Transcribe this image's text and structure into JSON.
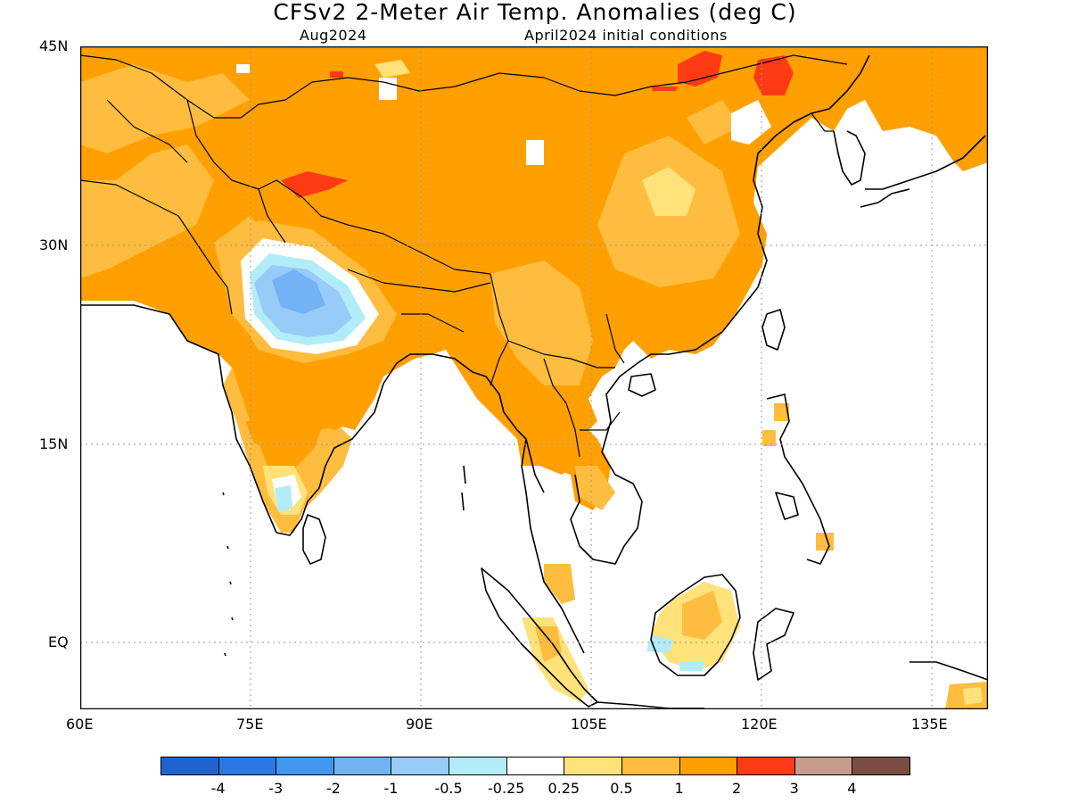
{
  "title": "CFSv2 2-Meter Air Temp. Anomalies (deg C)",
  "subtitle_left": "Aug2024",
  "subtitle_right": "April2024 initial conditions",
  "map": {
    "type": "heatmap",
    "lon_range": [
      60,
      140
    ],
    "lat_range": [
      -6,
      45
    ],
    "grid": "dotted",
    "lat_labels": [
      "45N",
      "30N",
      "15N",
      "EQ"
    ],
    "lon_labels": [
      "60E",
      "75E",
      "90E",
      "105E",
      "120E",
      "135E"
    ]
  },
  "colorbar": {
    "labels": [
      "-4",
      "-3",
      "-2",
      "-1",
      "-0.5",
      "-0.25",
      "0.25",
      "0.5",
      "1",
      "2",
      "3",
      "4"
    ],
    "colors": [
      "#1f63cf",
      "#2b78e4",
      "#4395ef",
      "#73b2f4",
      "#97cbf8",
      "#b2ecf8",
      "#ffffff",
      "#ffe27a",
      "#ffbd3f",
      "#ffa000",
      "#ff3b14",
      "#c89c8c",
      "#7b4d41"
    ]
  },
  "chart_data": {
    "type": "heatmap",
    "title": "CFSv2 2-Meter Air Temp. Anomalies (deg C)",
    "subtitle": "Aug2024 — April2024 initial conditions",
    "x_axis": {
      "label": "",
      "range": [
        60,
        140
      ],
      "ticks": [
        "60E",
        "75E",
        "90E",
        "105E",
        "120E",
        "135E"
      ]
    },
    "y_axis": {
      "label": "",
      "range": [
        -6,
        45
      ],
      "ticks": [
        "45N",
        "30N",
        "15N",
        "EQ"
      ]
    },
    "legend_bins": [
      "<-4",
      "-4 to -3",
      "-3 to -2",
      "-2 to -1",
      "-1 to -0.5",
      "-0.5 to -0.25",
      "-0.25 to 0.25",
      "0.25 to 0.5",
      "0.5 to 1",
      "1 to 2",
      "2 to 3",
      "3 to 4",
      ">4"
    ],
    "regions": [
      {
        "lon": [
          60,
          140
        ],
        "lat": [
          22,
          45
        ],
        "anomaly": 1.5
      },
      {
        "lon": [
          77,
          84
        ],
        "lat": [
          23,
          29
        ],
        "anomaly": -1.5
      },
      {
        "lon": [
          75,
          86
        ],
        "lat": [
          21,
          30
        ],
        "anomaly": -0.3
      },
      {
        "lon": [
          73,
          80
        ],
        "lat": [
          8,
          22
        ],
        "anomaly": 0.75
      },
      {
        "lon": [
          92,
          110
        ],
        "lat": [
          10,
          25
        ],
        "anomaly": 1.5
      },
      {
        "lon": [
          106,
          112
        ],
        "lat": [
          31,
          35
        ],
        "anomaly": 0.4
      },
      {
        "lon": [
          114,
          120
        ],
        "lat": [
          41,
          44
        ],
        "anomaly": 2.5
      },
      {
        "lon": [
          78,
          83
        ],
        "lat": [
          34,
          36
        ],
        "anomaly": 2.5
      },
      {
        "lon": [
          108,
          117
        ],
        "lat": [
          -3,
          2
        ],
        "anomaly": 0.6
      },
      {
        "lon": [
          111,
          115
        ],
        "lat": [
          -2,
          0
        ],
        "anomaly": -0.4
      }
    ]
  }
}
